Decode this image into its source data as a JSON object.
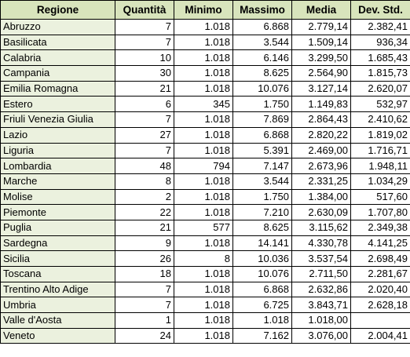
{
  "table": {
    "headers": [
      "Regione",
      "Quantità",
      "Minimo",
      "Massimo",
      "Media",
      "Dev. Std."
    ],
    "rows": [
      [
        "Abruzzo",
        "7",
        "1.018",
        "6.868",
        "2.779,14",
        "2.382,41"
      ],
      [
        "Basilicata",
        "7",
        "1.018",
        "3.544",
        "1.509,14",
        "936,34"
      ],
      [
        "Calabria",
        "10",
        "1.018",
        "6.146",
        "3.299,50",
        "1.685,43"
      ],
      [
        "Campania",
        "30",
        "1.018",
        "8.625",
        "2.564,90",
        "1.815,73"
      ],
      [
        "Emilia Romagna",
        "21",
        "1.018",
        "10.076",
        "3.127,14",
        "2.620,07"
      ],
      [
        "Estero",
        "6",
        "345",
        "1.750",
        "1.149,83",
        "532,97"
      ],
      [
        "Friuli Venezia Giulia",
        "7",
        "1.018",
        "7.869",
        "2.864,43",
        "2.410,62"
      ],
      [
        "Lazio",
        "27",
        "1.018",
        "6.868",
        "2.820,22",
        "1.819,02"
      ],
      [
        "Liguria",
        "7",
        "1.018",
        "5.391",
        "2.469,00",
        "1.716,71"
      ],
      [
        "Lombardia",
        "48",
        "794",
        "7.147",
        "2.673,96",
        "1.948,11"
      ],
      [
        "Marche",
        "8",
        "1.018",
        "3.544",
        "2.331,25",
        "1.034,29"
      ],
      [
        "Molise",
        "2",
        "1.018",
        "1.750",
        "1.384,00",
        "517,60"
      ],
      [
        "Piemonte",
        "22",
        "1.018",
        "7.210",
        "2.630,09",
        "1.707,80"
      ],
      [
        "Puglia",
        "21",
        "577",
        "8.625",
        "3.115,62",
        "2.349,38"
      ],
      [
        "Sardegna",
        "9",
        "1.018",
        "14.141",
        "4.330,78",
        "4.141,25"
      ],
      [
        "Sicilia",
        "26",
        "8",
        "10.036",
        "3.537,54",
        "2.698,49"
      ],
      [
        "Toscana",
        "18",
        "1.018",
        "10.076",
        "2.711,50",
        "2.281,67"
      ],
      [
        "Trentino Alto Adige",
        "7",
        "1.018",
        "6.868",
        "2.632,86",
        "2.020,40"
      ],
      [
        "Umbria",
        "7",
        "1.018",
        "6.725",
        "3.843,71",
        "2.628,18"
      ],
      [
        "Valle d'Aosta",
        "1",
        "1.018",
        "1.018",
        "1.018,00",
        ""
      ],
      [
        "Veneto",
        "24",
        "1.018",
        "7.162",
        "3.076,00",
        "2.004,41"
      ]
    ]
  },
  "colors": {
    "header_bg": "#d8e4bc",
    "region_bg": "#ebf1de",
    "border": "#000000"
  }
}
